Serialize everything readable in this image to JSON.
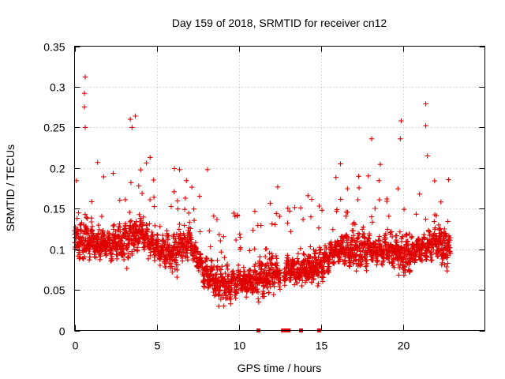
{
  "chart_data": {
    "type": "scatter",
    "title": "Day 159 of 2018, SRMTID for receiver cn12",
    "xlabel": "GPS time / hours",
    "ylabel": "SRMTID / TECUs",
    "xlim": [
      0,
      25
    ],
    "ylim": [
      0,
      0.35
    ],
    "x_ticks": [
      0,
      5,
      10,
      15,
      20
    ],
    "x_tick_labels": [
      "0",
      "5",
      "10",
      "15",
      "20"
    ],
    "y_ticks": [
      0,
      0.05,
      0.1,
      0.15,
      0.2,
      0.25,
      0.3,
      0.35
    ],
    "y_tick_labels": [
      "0",
      "0.05",
      "0.1",
      "0.15",
      "0.2",
      "0.25",
      "0.3",
      "0.35"
    ],
    "grid": true,
    "marker": "+",
    "marker_color": "#e00000",
    "series": [
      {
        "name": "SRMTID",
        "points_approx": "dense scatter of ~3000 samples, 0 to ~22.9 h; trend digitized below",
        "trend": {
          "x": [
            0,
            1,
            2,
            3,
            4,
            5,
            6,
            7,
            8,
            9,
            10,
            11,
            12,
            13,
            14,
            15,
            16,
            17,
            18,
            19,
            20,
            21,
            22,
            22.9
          ],
          "y": [
            0.11,
            0.11,
            0.105,
            0.11,
            0.12,
            0.1,
            0.095,
            0.11,
            0.07,
            0.055,
            0.06,
            0.06,
            0.07,
            0.075,
            0.075,
            0.08,
            0.1,
            0.1,
            0.1,
            0.1,
            0.09,
            0.1,
            0.11,
            0.1
          ]
        },
        "peaks": [
          {
            "x": 0.65,
            "y": 0.312
          },
          {
            "x": 0.6,
            "y": 0.292
          },
          {
            "x": 0.6,
            "y": 0.275
          },
          {
            "x": 0.65,
            "y": 0.25
          },
          {
            "x": 3.4,
            "y": 0.26
          },
          {
            "x": 3.7,
            "y": 0.264
          },
          {
            "x": 3.5,
            "y": 0.25
          },
          {
            "x": 4.6,
            "y": 0.213
          },
          {
            "x": 6.4,
            "y": 0.198
          },
          {
            "x": 8.1,
            "y": 0.198
          },
          {
            "x": 12.3,
            "y": 0.144
          },
          {
            "x": 16.2,
            "y": 0.205
          },
          {
            "x": 18.1,
            "y": 0.236
          },
          {
            "x": 19.9,
            "y": 0.258
          },
          {
            "x": 19.85,
            "y": 0.236
          },
          {
            "x": 21.4,
            "y": 0.279
          },
          {
            "x": 21.4,
            "y": 0.252
          },
          {
            "x": 21.5,
            "y": 0.215
          }
        ],
        "zero_values_at_hours": [
          11.2,
          12.7,
          12.85,
          13.05,
          13.8,
          14.9
        ]
      }
    ]
  }
}
